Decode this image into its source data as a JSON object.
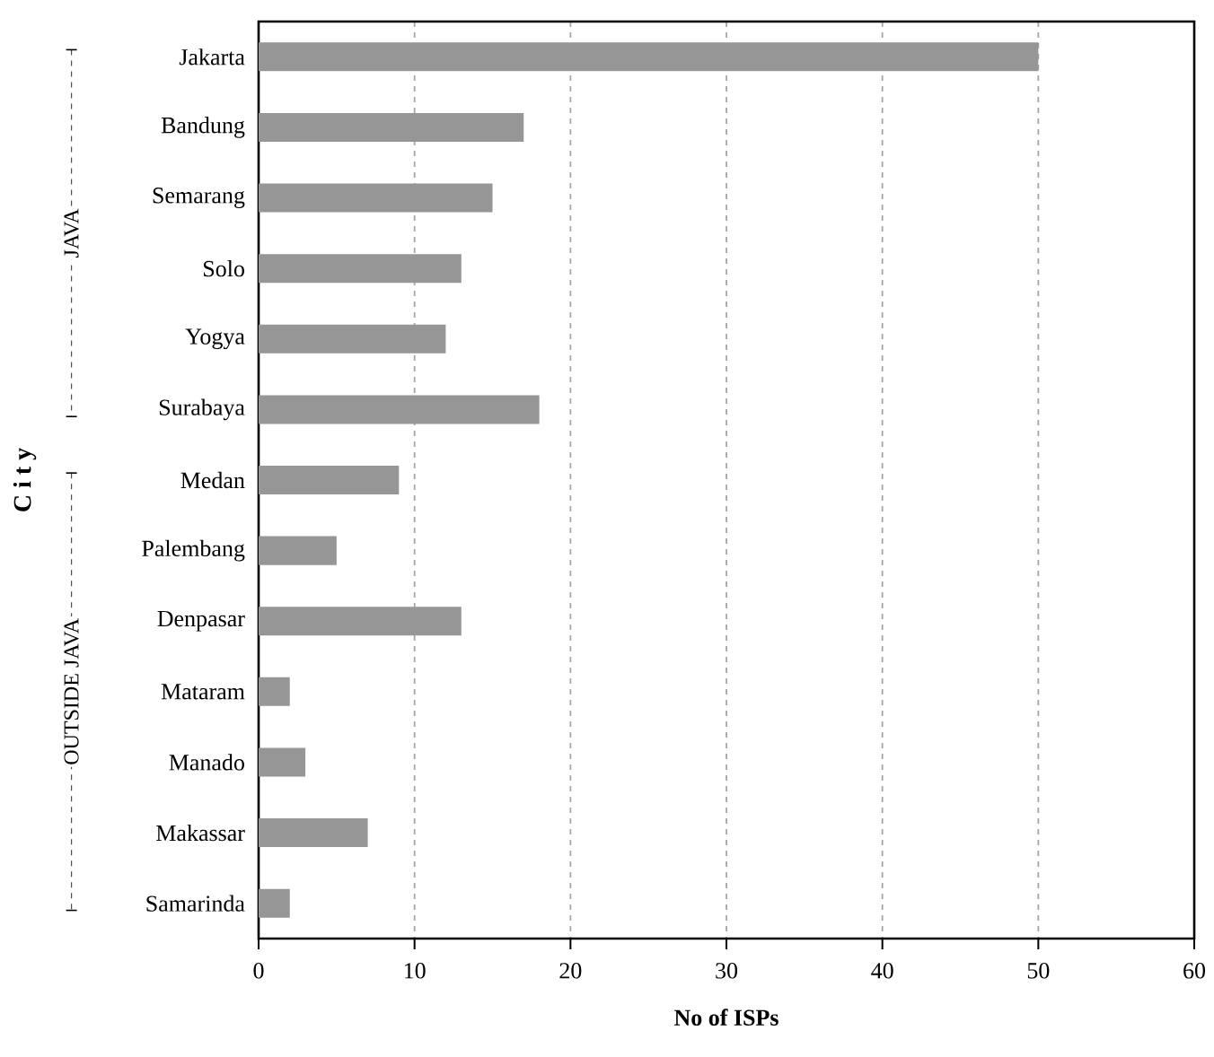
{
  "chart_data": {
    "type": "bar",
    "orientation": "horizontal",
    "xlabel": "No of ISPs",
    "ylabel": "C i t y",
    "categories": [
      "Jakarta",
      "Bandung",
      "Semarang",
      "Solo",
      "Yogya",
      "Surabaya",
      "Medan",
      "Palembang",
      "Denpasar",
      "Mataram",
      "Manado",
      "Makassar",
      "Samarinda"
    ],
    "values": [
      50,
      17,
      15,
      13,
      12,
      18,
      9,
      5,
      13,
      2,
      3,
      7,
      2
    ],
    "color": "#969696",
    "xlim": [
      0,
      60
    ],
    "xticks": [
      0,
      10,
      20,
      30,
      40,
      50,
      60
    ],
    "grid": "x",
    "annotations": [
      "JAVA",
      "OUTSIDE JAVA"
    ]
  }
}
